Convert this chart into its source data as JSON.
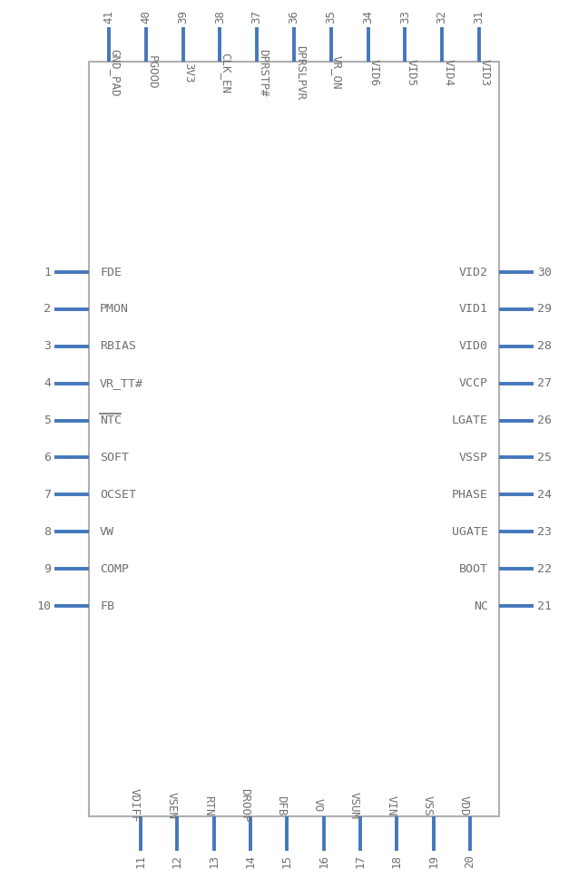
{
  "body_color": "#b0b0b0",
  "pin_color": "#4477bb",
  "text_color": "#707070",
  "bg_color": "#ffffff",
  "left_pins": [
    {
      "num": 1,
      "name": "FDE"
    },
    {
      "num": 2,
      "name": "PMON"
    },
    {
      "num": 3,
      "name": "RBIAS"
    },
    {
      "num": 4,
      "name": "VR_TT#"
    },
    {
      "num": 5,
      "name": "NTC"
    },
    {
      "num": 6,
      "name": "SOFT"
    },
    {
      "num": 7,
      "name": "OCSET"
    },
    {
      "num": 8,
      "name": "VW"
    },
    {
      "num": 9,
      "name": "COMP"
    },
    {
      "num": 10,
      "name": "FB"
    }
  ],
  "right_pins": [
    {
      "num": 30,
      "name": "VID2"
    },
    {
      "num": 29,
      "name": "VID1"
    },
    {
      "num": 28,
      "name": "VID0"
    },
    {
      "num": 27,
      "name": "VCCP"
    },
    {
      "num": 26,
      "name": "LGATE"
    },
    {
      "num": 25,
      "name": "VSSP"
    },
    {
      "num": 24,
      "name": "PHASE"
    },
    {
      "num": 23,
      "name": "UGATE"
    },
    {
      "num": 22,
      "name": "BOOT"
    },
    {
      "num": 21,
      "name": "NC"
    }
  ],
  "top_pins": [
    {
      "num": 41,
      "name": "GND_PAD"
    },
    {
      "num": 40,
      "name": "PGOOD"
    },
    {
      "num": 39,
      "name": "3V3"
    },
    {
      "num": 38,
      "name": "CLK_EN"
    },
    {
      "num": 37,
      "name": "DPRSTP#"
    },
    {
      "num": 36,
      "name": "DPRSLPVR"
    },
    {
      "num": 35,
      "name": "VR_ON"
    },
    {
      "num": 34,
      "name": "VID6"
    },
    {
      "num": 33,
      "name": "VID5"
    },
    {
      "num": 32,
      "name": "VID4"
    },
    {
      "num": 31,
      "name": "VID3"
    }
  ],
  "bottom_pins": [
    {
      "num": 11,
      "name": "VDIFF"
    },
    {
      "num": 12,
      "name": "VSEN"
    },
    {
      "num": 13,
      "name": "RTN"
    },
    {
      "num": 14,
      "name": "DROOP"
    },
    {
      "num": 15,
      "name": "DFB"
    },
    {
      "num": 16,
      "name": "VO"
    },
    {
      "num": 17,
      "name": "VSUM"
    },
    {
      "num": 18,
      "name": "VIN"
    },
    {
      "num": 19,
      "name": "VSS"
    },
    {
      "num": 20,
      "name": "VDD"
    }
  ],
  "ntc_bar_pin_index": 4
}
